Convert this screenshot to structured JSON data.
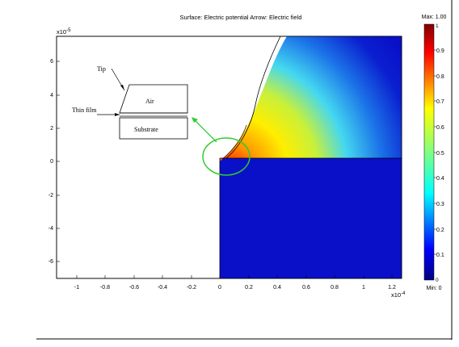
{
  "plot": {
    "title": "Surface: Electric potential  Arrow: Electric field",
    "y_exp_base": "x10",
    "y_exp_power": "-5",
    "x_exp_base": "x10",
    "x_exp_power": "-4",
    "y_ticks": [
      "6",
      "4",
      "2",
      "0",
      "-2",
      "-4",
      "-6"
    ],
    "x_ticks": [
      "-1",
      "-0.8",
      "-0.6",
      "-0.4",
      "-0.2",
      "0",
      "0.2",
      "0.4",
      "0.6",
      "0.8",
      "1",
      "1.2"
    ]
  },
  "colorbar": {
    "max_label": "Max: 1.00",
    "min_label": "Min: 0",
    "top_value": "1",
    "bottom_value": "0",
    "ticks": [
      "0.9",
      "0.8",
      "0.7",
      "0.6",
      "0.5",
      "0.4",
      "0.3",
      "0.2",
      "0.1"
    ]
  },
  "inset": {
    "tip_label": "Tip",
    "air_label": "Air",
    "thin_film_label": "Thin film",
    "substrate_label": "Substrate"
  },
  "colors": {
    "substrate_blue": "#0a10c8",
    "highlight_green": "#2ecc2e",
    "frame": "#000000"
  }
}
